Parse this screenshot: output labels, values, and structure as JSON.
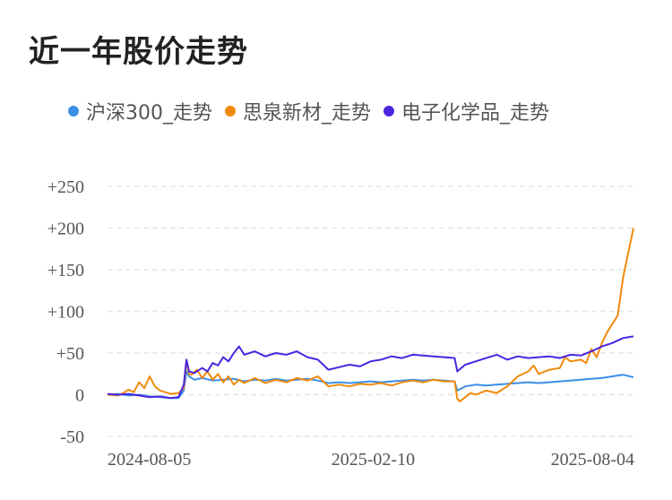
{
  "page_title": "近一年股价走势",
  "chart_data": {
    "type": "line",
    "title": "近一年股价走势",
    "xlabel": "",
    "ylabel": "",
    "ylim": [
      -50,
      250
    ],
    "grid": true,
    "legend_placement": "top",
    "y_ticks": [
      "+250",
      "+200",
      "+150",
      "+100",
      "+50",
      "0",
      "-50"
    ],
    "y_tick_values": [
      250,
      200,
      150,
      100,
      50,
      0,
      -50
    ],
    "x_ticks": [
      "2024-08-05",
      "2025-02-10",
      "2025-08-04"
    ],
    "x_tick_positions": [
      0,
      0.505,
      1
    ],
    "x_start": "2024-08-05",
    "x_end": "2025-08-04",
    "series": [
      {
        "name": "沪深300_走势",
        "color": "#3b8fe6",
        "points": [
          [
            0,
            0
          ],
          [
            0.02,
            1
          ],
          [
            0.04,
            -1
          ],
          [
            0.06,
            0
          ],
          [
            0.08,
            -2
          ],
          [
            0.1,
            -3
          ],
          [
            0.12,
            -4
          ],
          [
            0.135,
            -4
          ],
          [
            0.145,
            5
          ],
          [
            0.15,
            28
          ],
          [
            0.155,
            22
          ],
          [
            0.165,
            18
          ],
          [
            0.18,
            20
          ],
          [
            0.2,
            17
          ],
          [
            0.22,
            18
          ],
          [
            0.24,
            19
          ],
          [
            0.26,
            16
          ],
          [
            0.28,
            18
          ],
          [
            0.3,
            17
          ],
          [
            0.32,
            19
          ],
          [
            0.34,
            17
          ],
          [
            0.36,
            18
          ],
          [
            0.38,
            19
          ],
          [
            0.4,
            17
          ],
          [
            0.42,
            14
          ],
          [
            0.44,
            15
          ],
          [
            0.46,
            14
          ],
          [
            0.48,
            15
          ],
          [
            0.5,
            16
          ],
          [
            0.52,
            15
          ],
          [
            0.54,
            16
          ],
          [
            0.56,
            17
          ],
          [
            0.58,
            18
          ],
          [
            0.6,
            17
          ],
          [
            0.62,
            18
          ],
          [
            0.64,
            17
          ],
          [
            0.66,
            16
          ],
          [
            0.665,
            5
          ],
          [
            0.68,
            10
          ],
          [
            0.7,
            12
          ],
          [
            0.72,
            11
          ],
          [
            0.74,
            12
          ],
          [
            0.76,
            13
          ],
          [
            0.78,
            14
          ],
          [
            0.8,
            15
          ],
          [
            0.82,
            14
          ],
          [
            0.84,
            15
          ],
          [
            0.86,
            16
          ],
          [
            0.88,
            17
          ],
          [
            0.9,
            18
          ],
          [
            0.92,
            19
          ],
          [
            0.94,
            20
          ],
          [
            0.96,
            22
          ],
          [
            0.98,
            24
          ],
          [
            1.0,
            21
          ]
        ]
      },
      {
        "name": "思泉新材_走势",
        "color": "#f08a0c",
        "points": [
          [
            0,
            0
          ],
          [
            0.02,
            -1
          ],
          [
            0.03,
            2
          ],
          [
            0.04,
            6
          ],
          [
            0.05,
            3
          ],
          [
            0.06,
            15
          ],
          [
            0.07,
            8
          ],
          [
            0.08,
            22
          ],
          [
            0.09,
            10
          ],
          [
            0.1,
            5
          ],
          [
            0.11,
            3
          ],
          [
            0.12,
            1
          ],
          [
            0.135,
            2
          ],
          [
            0.145,
            8
          ],
          [
            0.15,
            40
          ],
          [
            0.155,
            25
          ],
          [
            0.16,
            24
          ],
          [
            0.17,
            30
          ],
          [
            0.18,
            20
          ],
          [
            0.19,
            28
          ],
          [
            0.2,
            18
          ],
          [
            0.21,
            25
          ],
          [
            0.22,
            15
          ],
          [
            0.23,
            22
          ],
          [
            0.24,
            12
          ],
          [
            0.25,
            18
          ],
          [
            0.26,
            14
          ],
          [
            0.28,
            20
          ],
          [
            0.3,
            14
          ],
          [
            0.32,
            18
          ],
          [
            0.34,
            15
          ],
          [
            0.36,
            20
          ],
          [
            0.38,
            17
          ],
          [
            0.4,
            22
          ],
          [
            0.42,
            10
          ],
          [
            0.44,
            12
          ],
          [
            0.46,
            10
          ],
          [
            0.48,
            13
          ],
          [
            0.5,
            12
          ],
          [
            0.52,
            14
          ],
          [
            0.54,
            11
          ],
          [
            0.56,
            15
          ],
          [
            0.58,
            17
          ],
          [
            0.6,
            15
          ],
          [
            0.62,
            18
          ],
          [
            0.64,
            16
          ],
          [
            0.66,
            16
          ],
          [
            0.665,
            -5
          ],
          [
            0.67,
            -8
          ],
          [
            0.68,
            -3
          ],
          [
            0.69,
            2
          ],
          [
            0.7,
            0
          ],
          [
            0.72,
            5
          ],
          [
            0.74,
            2
          ],
          [
            0.76,
            10
          ],
          [
            0.78,
            22
          ],
          [
            0.8,
            28
          ],
          [
            0.81,
            35
          ],
          [
            0.82,
            25
          ],
          [
            0.84,
            30
          ],
          [
            0.86,
            32
          ],
          [
            0.87,
            45
          ],
          [
            0.88,
            40
          ],
          [
            0.9,
            42
          ],
          [
            0.91,
            38
          ],
          [
            0.92,
            55
          ],
          [
            0.93,
            45
          ],
          [
            0.94,
            62
          ],
          [
            0.95,
            75
          ],
          [
            0.96,
            85
          ],
          [
            0.97,
            95
          ],
          [
            0.98,
            140
          ],
          [
            0.99,
            170
          ],
          [
            1.0,
            200
          ]
        ]
      },
      {
        "name": "电子化学品_走势",
        "color": "#4a25e0",
        "points": [
          [
            0,
            1
          ],
          [
            0.02,
            0
          ],
          [
            0.04,
            1
          ],
          [
            0.06,
            -1
          ],
          [
            0.08,
            -3
          ],
          [
            0.1,
            -2
          ],
          [
            0.12,
            -4
          ],
          [
            0.135,
            -3
          ],
          [
            0.145,
            12
          ],
          [
            0.15,
            42
          ],
          [
            0.155,
            28
          ],
          [
            0.165,
            26
          ],
          [
            0.18,
            32
          ],
          [
            0.19,
            28
          ],
          [
            0.2,
            38
          ],
          [
            0.21,
            35
          ],
          [
            0.22,
            45
          ],
          [
            0.23,
            40
          ],
          [
            0.24,
            50
          ],
          [
            0.25,
            58
          ],
          [
            0.26,
            48
          ],
          [
            0.28,
            52
          ],
          [
            0.3,
            46
          ],
          [
            0.32,
            50
          ],
          [
            0.34,
            48
          ],
          [
            0.36,
            52
          ],
          [
            0.38,
            45
          ],
          [
            0.4,
            42
          ],
          [
            0.42,
            30
          ],
          [
            0.44,
            33
          ],
          [
            0.46,
            36
          ],
          [
            0.48,
            34
          ],
          [
            0.5,
            40
          ],
          [
            0.52,
            42
          ],
          [
            0.54,
            46
          ],
          [
            0.56,
            44
          ],
          [
            0.58,
            48
          ],
          [
            0.6,
            47
          ],
          [
            0.62,
            46
          ],
          [
            0.64,
            45
          ],
          [
            0.66,
            44
          ],
          [
            0.665,
            28
          ],
          [
            0.68,
            36
          ],
          [
            0.7,
            40
          ],
          [
            0.72,
            44
          ],
          [
            0.74,
            48
          ],
          [
            0.76,
            42
          ],
          [
            0.78,
            46
          ],
          [
            0.8,
            44
          ],
          [
            0.82,
            45
          ],
          [
            0.84,
            46
          ],
          [
            0.86,
            44
          ],
          [
            0.88,
            48
          ],
          [
            0.9,
            47
          ],
          [
            0.92,
            52
          ],
          [
            0.94,
            58
          ],
          [
            0.96,
            62
          ],
          [
            0.98,
            68
          ],
          [
            1.0,
            70
          ]
        ]
      }
    ]
  }
}
